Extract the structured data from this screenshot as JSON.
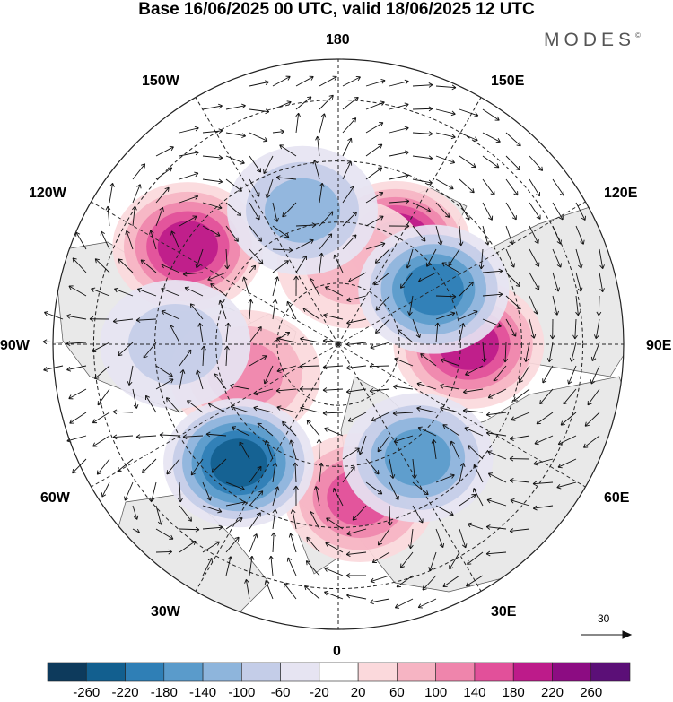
{
  "title": "Base 16/06/2025 00 UTC, valid 18/06/2025 12 UTC",
  "brand": "MODES",
  "brand_mark": "©",
  "longitude_labels": {
    "n180": "180",
    "e150": "150E",
    "e120": "120E",
    "e90": "90E",
    "e60": "60E",
    "e30": "30E",
    "z0": "0",
    "w30": "30W",
    "w60": "60W",
    "w90": "90W",
    "w120": "120W",
    "w150": "150W"
  },
  "reference_vector_label": "30",
  "colorbar": {
    "labels": [
      "-260",
      "-220",
      "-180",
      "-140",
      "-100",
      "-60",
      "-20",
      "20",
      "60",
      "100",
      "140",
      "180",
      "220",
      "260"
    ],
    "colors": [
      "#0d3a5c",
      "#125f8f",
      "#2f7fb6",
      "#5a9bcb",
      "#8eb5dc",
      "#c4cde8",
      "#e6e4f2",
      "#ffffff",
      "#fbd9dc",
      "#f6b4c3",
      "#ef85ac",
      "#e2509a",
      "#bd1b8a",
      "#8c0c82",
      "#5b0f77"
    ]
  },
  "anomaly_centers": [
    {
      "lon": 150,
      "lat": 62,
      "value": 220
    },
    {
      "lon": -123,
      "lat": 46,
      "value": 200
    },
    {
      "lon": 90,
      "lat": 58,
      "value": 200
    },
    {
      "lon": 8,
      "lat": 52,
      "value": 160
    },
    {
      "lon": -72,
      "lat": 66,
      "value": 120
    },
    {
      "lon": 170,
      "lat": 70,
      "value": 90
    },
    {
      "lon": -40,
      "lat": 52,
      "value": -240
    },
    {
      "lon": 35,
      "lat": 56,
      "value": -170
    },
    {
      "lon": 120,
      "lat": 63,
      "value": -180
    },
    {
      "lon": -165,
      "lat": 56,
      "value": -120
    },
    {
      "lon": -90,
      "lat": 50,
      "value": -80
    }
  ]
}
